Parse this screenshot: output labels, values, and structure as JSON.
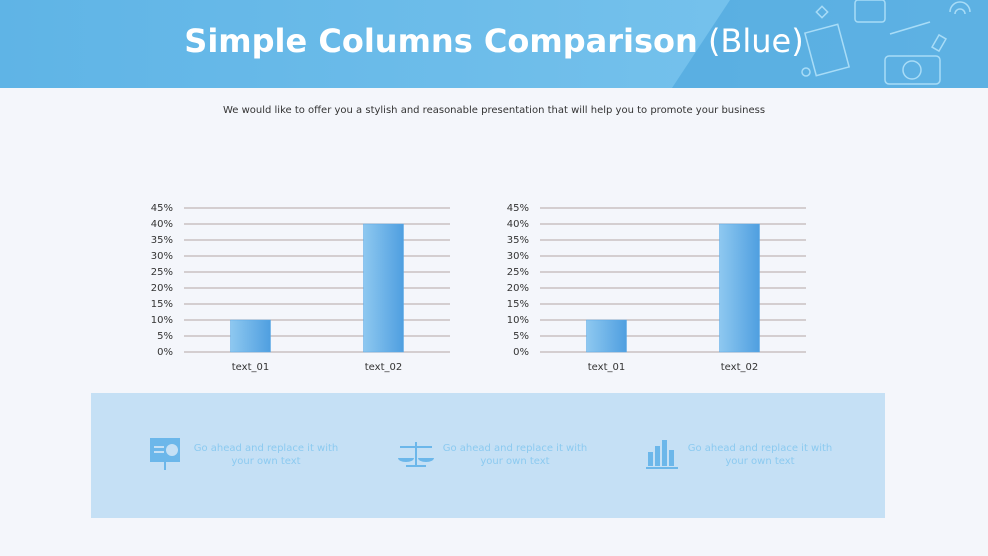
{
  "header": {
    "title": "Simple Columns Comparison",
    "title_note": "(Blue)"
  },
  "subtitle": "We would like to offer you a stylish and reasonable presentation that will help you to promote your business",
  "chart_data": [
    {
      "type": "bar",
      "categories": [
        "text_01",
        "text_02"
      ],
      "values": [
        10,
        40
      ],
      "color": "#5aa8e6",
      "ylim": [
        0,
        45
      ],
      "grid": true,
      "yticks": [
        {
          "value": 0,
          "label": "0%"
        },
        {
          "value": 5,
          "label": "5%"
        },
        {
          "value": 10,
          "label": "10%"
        },
        {
          "value": 15,
          "label": "15%"
        },
        {
          "value": 20,
          "label": "20%"
        },
        {
          "value": 25,
          "label": "25%"
        },
        {
          "value": 30,
          "label": "30%"
        },
        {
          "value": 35,
          "label": "35%"
        },
        {
          "value": 40,
          "label": "40%"
        },
        {
          "value": 45,
          "label": "45%"
        }
      ]
    },
    {
      "type": "bar",
      "categories": [
        "text_01",
        "text_02"
      ],
      "values": [
        10,
        40
      ],
      "color": "#5aa8e6",
      "ylim": [
        0,
        45
      ],
      "grid": true,
      "yticks": [
        {
          "value": 0,
          "label": "0%"
        },
        {
          "value": 5,
          "label": "5%"
        },
        {
          "value": 10,
          "label": "10%"
        },
        {
          "value": 15,
          "label": "15%"
        },
        {
          "value": 20,
          "label": "20%"
        },
        {
          "value": 25,
          "label": "25%"
        },
        {
          "value": 30,
          "label": "30%"
        },
        {
          "value": 35,
          "label": "35%"
        },
        {
          "value": 40,
          "label": "40%"
        },
        {
          "value": 45,
          "label": "45%"
        }
      ]
    }
  ],
  "features": [
    {
      "line1": "Go ahead and replace it with",
      "line2": "your own text"
    },
    {
      "line1": "Go ahead and replace it with",
      "line2": "your own text"
    },
    {
      "line1": "Go ahead and replace it with",
      "line2": "your own text"
    }
  ]
}
